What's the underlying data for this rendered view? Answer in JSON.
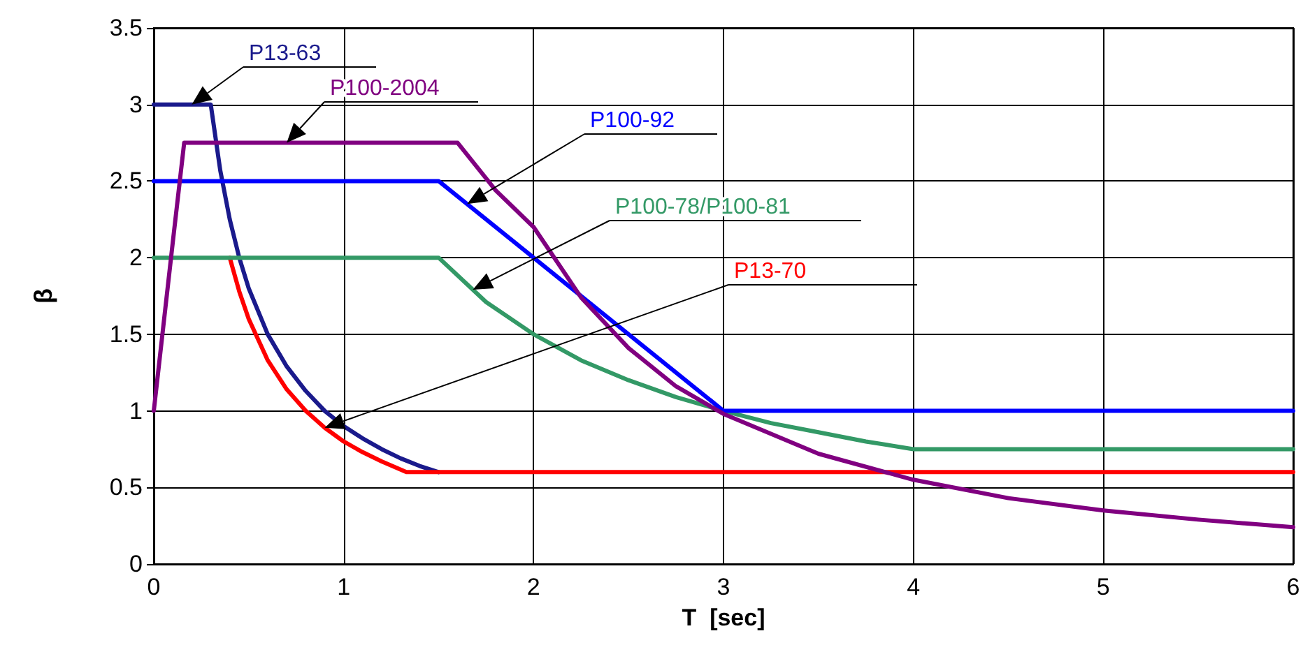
{
  "chart_data": {
    "type": "line",
    "xlabel": "T  [sec]",
    "ylabel": "β",
    "xlim": [
      0,
      6
    ],
    "xticks": [
      0,
      1,
      2,
      3,
      4,
      5,
      6
    ],
    "ylim": [
      0,
      3.5
    ],
    "yticks": [
      0,
      0.5,
      1,
      1.5,
      2,
      2.5,
      3,
      3.5
    ],
    "grid": true,
    "legend": false,
    "marker": "none",
    "line_style": "solid",
    "series": [
      {
        "name": "P13-63",
        "color": "#1a1a8c",
        "x": [
          0,
          0.3,
          0.35,
          0.4,
          0.45,
          0.5,
          0.6,
          0.7,
          0.8,
          0.9,
          1.0,
          1.1,
          1.2,
          1.3,
          1.4,
          1.5
        ],
        "values": [
          3,
          3,
          2.57,
          2.25,
          2,
          1.8,
          1.5,
          1.29,
          1.13,
          1,
          0.9,
          0.82,
          0.75,
          0.69,
          0.64,
          0.6
        ]
      },
      {
        "name": "P13-70",
        "color": "#ff0000",
        "x": [
          0.4,
          0.45,
          0.5,
          0.6,
          0.7,
          0.8,
          0.9,
          1.0,
          1.1,
          1.2,
          1.33,
          1.5,
          6
        ],
        "values": [
          2,
          1.78,
          1.6,
          1.33,
          1.14,
          1,
          0.89,
          0.8,
          0.73,
          0.67,
          0.6,
          0.6,
          0.6
        ]
      },
      {
        "name": "P100-78/P100-81",
        "color": "#339966",
        "x": [
          0,
          1.5,
          1.75,
          2,
          2.25,
          2.5,
          2.75,
          3,
          3.25,
          3.5,
          3.75,
          4,
          6
        ],
        "values": [
          2,
          2,
          1.71,
          1.5,
          1.33,
          1.2,
          1.09,
          1,
          0.92,
          0.86,
          0.8,
          0.75,
          0.75
        ]
      },
      {
        "name": "P100-92",
        "color": "#0000ff",
        "x": [
          0,
          1.5,
          3,
          6
        ],
        "values": [
          2.5,
          2.5,
          1,
          1
        ]
      },
      {
        "name": "P100-2004",
        "color": "#800080",
        "x": [
          0,
          0.05,
          0.1,
          0.16,
          1.6,
          1.8,
          2,
          2.25,
          2.5,
          2.75,
          3,
          3.5,
          4,
          4.5,
          5,
          5.5,
          6
        ],
        "values": [
          1,
          1.55,
          2.1,
          2.75,
          2.75,
          2.44,
          2.2,
          1.74,
          1.41,
          1.16,
          0.98,
          0.72,
          0.55,
          0.43,
          0.35,
          0.29,
          0.24
        ]
      }
    ]
  }
}
